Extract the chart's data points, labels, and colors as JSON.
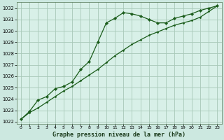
{
  "title": "Graphe pression niveau de la mer (hPa)",
  "background_color": "#cce8e0",
  "plot_bg_color": "#d8f0e8",
  "grid_color": "#a8c8b8",
  "line_color": "#1a5c1a",
  "xlim": [
    -0.5,
    23.5
  ],
  "ylim": [
    1021.8,
    1032.5
  ],
  "yticks": [
    1022,
    1023,
    1024,
    1025,
    1026,
    1027,
    1028,
    1029,
    1030,
    1031,
    1032
  ],
  "xticks": [
    0,
    1,
    2,
    3,
    4,
    5,
    6,
    7,
    8,
    9,
    10,
    11,
    12,
    13,
    14,
    15,
    16,
    17,
    18,
    19,
    20,
    21,
    22,
    23
  ],
  "curve1_x": [
    0,
    1,
    2,
    3,
    4,
    5,
    6,
    7,
    8,
    9,
    10,
    11,
    12,
    13,
    14,
    15,
    16,
    17,
    18,
    19,
    20,
    21,
    22,
    23
  ],
  "curve1_y": [
    1022.2,
    1022.9,
    1023.9,
    1024.2,
    1024.9,
    1025.1,
    1025.5,
    1026.6,
    1027.3,
    1029.0,
    1030.7,
    1031.1,
    1031.6,
    1031.5,
    1031.3,
    1031.0,
    1030.7,
    1030.7,
    1031.1,
    1031.3,
    1031.5,
    1031.8,
    1032.0,
    1032.2
  ],
  "curve2_x": [
    0,
    1,
    2,
    3,
    4,
    5,
    6,
    7,
    8,
    9,
    10,
    11,
    12,
    13,
    14,
    15,
    16,
    17,
    18,
    19,
    20,
    21,
    22,
    23
  ],
  "curve2_y": [
    1022.2,
    1022.8,
    1023.2,
    1023.7,
    1024.2,
    1024.7,
    1025.1,
    1025.6,
    1026.1,
    1026.6,
    1027.2,
    1027.8,
    1028.3,
    1028.8,
    1029.2,
    1029.6,
    1029.9,
    1030.2,
    1030.5,
    1030.7,
    1030.9,
    1031.2,
    1031.7,
    1032.2
  ]
}
